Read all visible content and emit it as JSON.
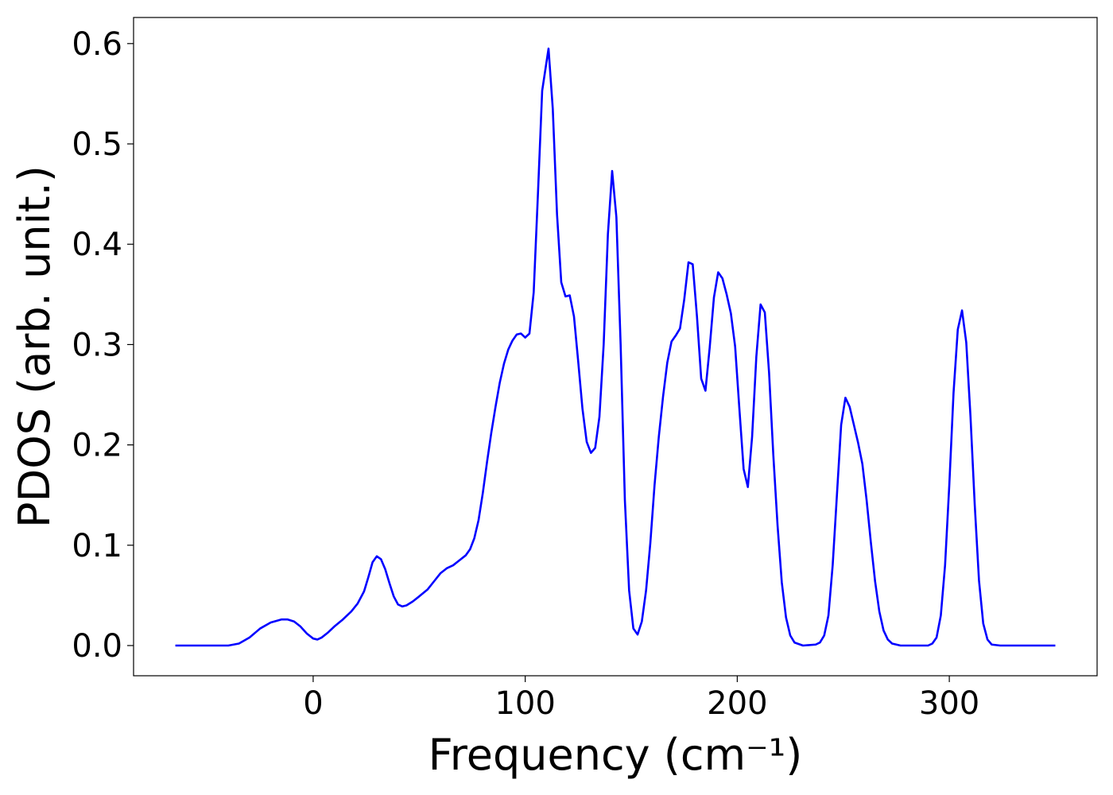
{
  "chart_data": {
    "type": "line",
    "xlabel": "Frequency (cm⁻¹)",
    "ylabel": "PDOS (arb. unit.)",
    "xlim": [
      -84.7,
      369.7
    ],
    "ylim": [
      -0.0301,
      0.626
    ],
    "xticks": [
      0,
      100,
      200,
      300
    ],
    "yticks": [
      {
        "value": 0,
        "label": "0.0"
      },
      0.1,
      0.2,
      0.3,
      0.4,
      0.5,
      0.6
    ],
    "grid": false,
    "series": [
      {
        "color": "#0000ff",
        "x": [
          -65,
          -40,
          -35,
          -30,
          -25,
          -20,
          -15,
          -12,
          -9,
          -6,
          -3,
          0,
          2,
          4,
          7,
          10,
          14,
          18,
          21,
          24,
          26,
          28,
          30,
          32,
          34,
          36,
          38,
          40,
          42,
          44,
          47,
          50,
          54,
          57,
          60,
          63,
          66,
          69,
          72,
          74,
          76,
          78,
          80,
          82,
          84,
          86,
          88,
          90,
          92,
          94,
          96,
          98,
          100,
          102,
          104,
          106,
          108,
          111,
          113,
          115,
          117,
          119,
          121,
          123,
          125,
          127,
          129,
          131,
          133,
          135,
          137,
          139,
          141,
          143,
          145,
          147,
          149,
          151,
          153,
          155,
          157,
          159,
          161,
          163,
          165,
          167,
          169,
          171,
          173,
          175,
          177,
          179,
          181,
          183,
          185,
          187,
          189,
          191,
          193,
          195,
          197,
          199,
          201,
          203,
          205,
          207,
          209,
          211,
          213,
          215,
          217,
          219,
          221,
          223,
          225,
          227,
          231,
          237,
          239,
          241,
          243,
          245,
          247,
          249,
          251,
          253,
          255,
          257,
          259,
          261,
          263,
          265,
          267,
          269,
          271,
          273,
          277,
          290,
          292,
          294,
          296,
          298,
          300,
          302,
          304,
          306,
          308,
          310,
          312,
          314,
          316,
          318,
          320,
          324,
          350
        ],
        "values": [
          0,
          0,
          0.002,
          0.008,
          0.017,
          0.023,
          0.026,
          0.026,
          0.024,
          0.019,
          0.012,
          0.007,
          0.006,
          0.008,
          0.013,
          0.019,
          0.026,
          0.034,
          0.042,
          0.054,
          0.068,
          0.083,
          0.089,
          0.086,
          0.076,
          0.062,
          0.049,
          0.041,
          0.039,
          0.04,
          0.044,
          0.049,
          0.056,
          0.064,
          0.072,
          0.077,
          0.08,
          0.085,
          0.09,
          0.096,
          0.107,
          0.125,
          0.152,
          0.183,
          0.212,
          0.238,
          0.262,
          0.281,
          0.295,
          0.304,
          0.31,
          0.311,
          0.307,
          0.311,
          0.352,
          0.45,
          0.553,
          0.595,
          0.535,
          0.43,
          0.362,
          0.348,
          0.349,
          0.328,
          0.283,
          0.236,
          0.203,
          0.192,
          0.197,
          0.228,
          0.3,
          0.41,
          0.473,
          0.427,
          0.3,
          0.145,
          0.055,
          0.017,
          0.011,
          0.024,
          0.055,
          0.102,
          0.16,
          0.208,
          0.248,
          0.282,
          0.303,
          0.309,
          0.316,
          0.345,
          0.382,
          0.38,
          0.328,
          0.266,
          0.254,
          0.297,
          0.347,
          0.372,
          0.366,
          0.35,
          0.331,
          0.298,
          0.236,
          0.176,
          0.158,
          0.208,
          0.288,
          0.34,
          0.332,
          0.272,
          0.19,
          0.12,
          0.063,
          0.028,
          0.01,
          0.003,
          0,
          0.001,
          0.003,
          0.01,
          0.03,
          0.08,
          0.15,
          0.22,
          0.247,
          0.238,
          0.22,
          0.202,
          0.181,
          0.145,
          0.103,
          0.064,
          0.034,
          0.015,
          0.006,
          0.002,
          0,
          0,
          0.002,
          0.008,
          0.03,
          0.08,
          0.16,
          0.252,
          0.315,
          0.334,
          0.302,
          0.228,
          0.14,
          0.065,
          0.022,
          0.006,
          0.001,
          0,
          0
        ]
      }
    ]
  }
}
